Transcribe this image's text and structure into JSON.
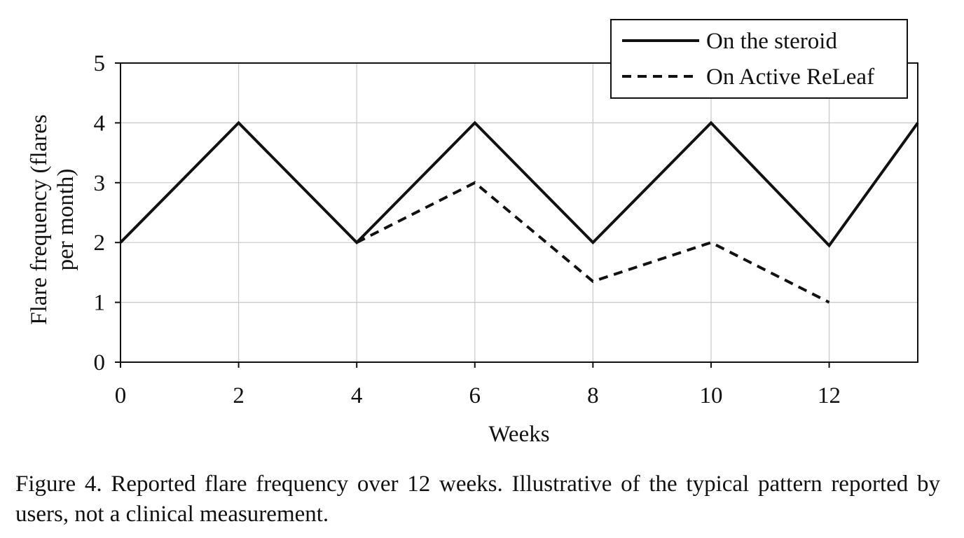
{
  "chart_data": {
    "type": "line",
    "title": "",
    "xlabel": "Weeks",
    "ylabel_lines": [
      "Flare frequency (flares",
      "per month)"
    ],
    "x_ticks": [
      0,
      2,
      4,
      6,
      8,
      10,
      12
    ],
    "y_ticks": [
      0,
      1,
      2,
      3,
      4,
      5
    ],
    "xlim": [
      0,
      13.5
    ],
    "ylim": [
      0,
      5
    ],
    "grid": true,
    "legend_position": "top-right",
    "series": [
      {
        "name": "On the steroid",
        "style": "solid",
        "color": "#111111",
        "x": [
          0,
          2,
          4,
          6,
          8,
          10,
          12,
          13.5
        ],
        "y": [
          2,
          4,
          2,
          4,
          2,
          4,
          1.95,
          4
        ]
      },
      {
        "name": "On Active ReLeaf",
        "style": "dashed",
        "color": "#111111",
        "x": [
          4,
          6,
          8,
          10,
          12
        ],
        "y": [
          2,
          3,
          1.35,
          2,
          1
        ]
      }
    ]
  },
  "caption": "Figure 4. Reported flare frequency over 12 weeks. Illustrative of the typical pattern reported by users, not a clinical measurement."
}
